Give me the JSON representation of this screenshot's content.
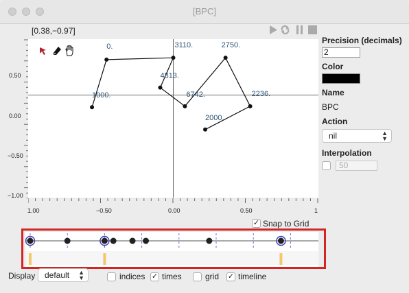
{
  "window": {
    "title": "[BPC]"
  },
  "readout": "[0.38,−0.97]",
  "plot": {
    "y_ticks": [
      "0.50",
      "0.00",
      "−0.50",
      "−1.00"
    ],
    "x_ticks": [
      "1.00",
      "−0.50",
      "0.00",
      "0.50",
      "1"
    ],
    "points": [
      {
        "x": -0.56,
        "y": -0.13,
        "label": "1000."
      },
      {
        "x": -0.46,
        "y": 0.38,
        "label": "0."
      },
      {
        "x": 0.0,
        "y": 0.4,
        "label": "3110."
      },
      {
        "x": -0.09,
        "y": 0.08,
        "label": "4813."
      },
      {
        "x": 0.08,
        "y": -0.12,
        "label": "6742."
      },
      {
        "x": 0.36,
        "y": 0.4,
        "label": "2750."
      },
      {
        "x": 0.53,
        "y": -0.12,
        "label": "2236."
      },
      {
        "x": 0.22,
        "y": -0.37,
        "label": "2000."
      }
    ]
  },
  "panel": {
    "precision_label": "Precision (decimals)",
    "precision_value": "2",
    "color_label": "Color",
    "color_value": "#000000",
    "name_label": "Name",
    "name_value": "BPC",
    "action_label": "Action",
    "action_value": "nil",
    "interpolation_label": "Interpolation",
    "interpolation_value": "50"
  },
  "snap_to_grid": {
    "label": "Snap to Grid",
    "checked": true
  },
  "timeline": {
    "ticks": [
      "1000",
      "2000",
      "3000",
      "4000",
      "5000",
      "6000",
      "7000"
    ],
    "events": [
      0,
      1000,
      2000,
      2236,
      2750,
      3110,
      4813,
      6742
    ]
  },
  "bottom": {
    "display_label": "Display",
    "display_value": "default",
    "indices_label": "indices",
    "indices_checked": false,
    "times_label": "times",
    "times_checked": true,
    "grid_label": "grid",
    "grid_checked": false,
    "timeline_label": "timeline",
    "timeline_checked": true
  }
}
